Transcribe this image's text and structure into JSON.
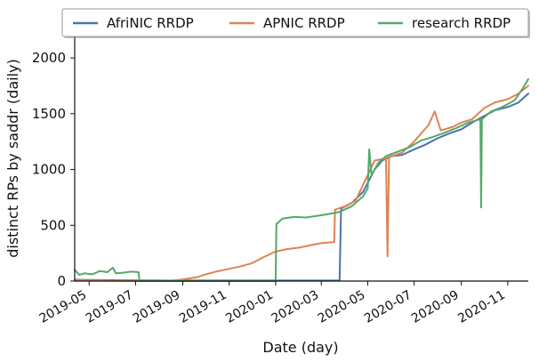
{
  "chart_data": {
    "type": "line",
    "title": "",
    "xlabel": "Date (day)",
    "ylabel": "distinct RPs by saddr (daily)",
    "xlim": [
      "2019-04-12",
      "2020-11-28"
    ],
    "ylim": [
      0,
      2200
    ],
    "x_ticks": [
      "2019-05",
      "2019-07",
      "2019-09",
      "2019-11",
      "2020-01",
      "2020-03",
      "2020-05",
      "2020-07",
      "2020-09",
      "2020-11"
    ],
    "y_ticks": [
      0,
      500,
      1000,
      1500,
      2000
    ],
    "grid": false,
    "legend": {
      "placement": "top",
      "entries": [
        "AfriNIC RRDP",
        "APNIC RRDP",
        "research RRDP"
      ]
    },
    "series": [
      {
        "name": "AfriNIC RRDP",
        "color": "#4c72b0",
        "points": [
          [
            "2019-04-12",
            12
          ],
          [
            "2019-05-01",
            10
          ],
          [
            "2019-06-01",
            8
          ],
          [
            "2019-07-01",
            6
          ],
          [
            "2019-08-01",
            5
          ],
          [
            "2019-09-01",
            5
          ],
          [
            "2019-10-01",
            5
          ],
          [
            "2019-11-01",
            5
          ],
          [
            "2019-12-01",
            5
          ],
          [
            "2020-01-01",
            5
          ],
          [
            "2020-02-01",
            5
          ],
          [
            "2020-03-01",
            5
          ],
          [
            "2020-03-25",
            5
          ],
          [
            "2020-03-27",
            650
          ],
          [
            "2020-04-10",
            700
          ],
          [
            "2020-04-25",
            800
          ],
          [
            "2020-05-10",
            1000
          ],
          [
            "2020-05-20",
            1080
          ],
          [
            "2020-06-01",
            1120
          ],
          [
            "2020-06-15",
            1130
          ],
          [
            "2020-07-01",
            1180
          ],
          [
            "2020-07-15",
            1220
          ],
          [
            "2020-08-01",
            1280
          ],
          [
            "2020-08-15",
            1320
          ],
          [
            "2020-09-01",
            1360
          ],
          [
            "2020-09-15",
            1420
          ],
          [
            "2020-10-01",
            1480
          ],
          [
            "2020-10-15",
            1530
          ],
          [
            "2020-11-01",
            1560
          ],
          [
            "2020-11-15",
            1600
          ],
          [
            "2020-11-28",
            1680
          ]
        ]
      },
      {
        "name": "APNIC RRDP",
        "color": "#dd8452",
        "points": [
          [
            "2019-04-12",
            8
          ],
          [
            "2019-05-01",
            5
          ],
          [
            "2019-06-01",
            3
          ],
          [
            "2019-07-01",
            1
          ],
          [
            "2019-08-01",
            0
          ],
          [
            "2019-08-15",
            3
          ],
          [
            "2019-09-01",
            15
          ],
          [
            "2019-09-20",
            35
          ],
          [
            "2019-10-01",
            60
          ],
          [
            "2019-10-15",
            85
          ],
          [
            "2019-11-01",
            110
          ],
          [
            "2019-11-15",
            130
          ],
          [
            "2019-12-01",
            160
          ],
          [
            "2019-12-15",
            210
          ],
          [
            "2020-01-01",
            265
          ],
          [
            "2020-01-15",
            285
          ],
          [
            "2020-02-01",
            300
          ],
          [
            "2020-02-15",
            320
          ],
          [
            "2020-03-01",
            340
          ],
          [
            "2020-03-18",
            350
          ],
          [
            "2020-03-19",
            640
          ],
          [
            "2020-04-01",
            670
          ],
          [
            "2020-04-15",
            720
          ],
          [
            "2020-05-01",
            950
          ],
          [
            "2020-05-10",
            1080
          ],
          [
            "2020-05-25",
            1100
          ],
          [
            "2020-05-27",
            220
          ],
          [
            "2020-05-29",
            1110
          ],
          [
            "2020-06-15",
            1150
          ],
          [
            "2020-07-01",
            1250
          ],
          [
            "2020-07-20",
            1400
          ],
          [
            "2020-07-28",
            1520
          ],
          [
            "2020-08-05",
            1350
          ],
          [
            "2020-08-20",
            1380
          ],
          [
            "2020-09-01",
            1420
          ],
          [
            "2020-09-15",
            1450
          ],
          [
            "2020-10-01",
            1550
          ],
          [
            "2020-10-15",
            1600
          ],
          [
            "2020-11-01",
            1630
          ],
          [
            "2020-11-15",
            1680
          ],
          [
            "2020-11-28",
            1750
          ]
        ]
      },
      {
        "name": "research RRDP",
        "color": "#55a868",
        "points": [
          [
            "2019-04-12",
            100
          ],
          [
            "2019-04-18",
            55
          ],
          [
            "2019-04-25",
            70
          ],
          [
            "2019-05-05",
            60
          ],
          [
            "2019-05-15",
            90
          ],
          [
            "2019-05-25",
            80
          ],
          [
            "2019-06-01",
            120
          ],
          [
            "2019-06-05",
            70
          ],
          [
            "2019-06-15",
            75
          ],
          [
            "2019-06-25",
            85
          ],
          [
            "2019-07-05",
            80
          ],
          [
            "2019-07-06",
            0
          ],
          [
            "2020-01-01",
            0
          ],
          [
            "2020-01-02",
            510
          ],
          [
            "2020-01-10",
            560
          ],
          [
            "2020-01-25",
            575
          ],
          [
            "2020-02-10",
            570
          ],
          [
            "2020-02-25",
            585
          ],
          [
            "2020-03-10",
            600
          ],
          [
            "2020-03-25",
            620
          ],
          [
            "2020-04-10",
            670
          ],
          [
            "2020-04-25",
            760
          ],
          [
            "2020-05-01",
            830
          ],
          [
            "2020-05-03",
            1180
          ],
          [
            "2020-05-06",
            950
          ],
          [
            "2020-05-15",
            1060
          ],
          [
            "2020-05-25",
            1120
          ],
          [
            "2020-06-10",
            1160
          ],
          [
            "2020-06-25",
            1200
          ],
          [
            "2020-07-10",
            1260
          ],
          [
            "2020-07-25",
            1290
          ],
          [
            "2020-08-10",
            1330
          ],
          [
            "2020-08-25",
            1370
          ],
          [
            "2020-09-10",
            1420
          ],
          [
            "2020-09-26",
            1450
          ],
          [
            "2020-09-27",
            660
          ],
          [
            "2020-09-28",
            1450
          ],
          [
            "2020-10-10",
            1520
          ],
          [
            "2020-10-25",
            1560
          ],
          [
            "2020-11-10",
            1620
          ],
          [
            "2020-11-20",
            1720
          ],
          [
            "2020-11-28",
            1810
          ]
        ]
      }
    ]
  }
}
